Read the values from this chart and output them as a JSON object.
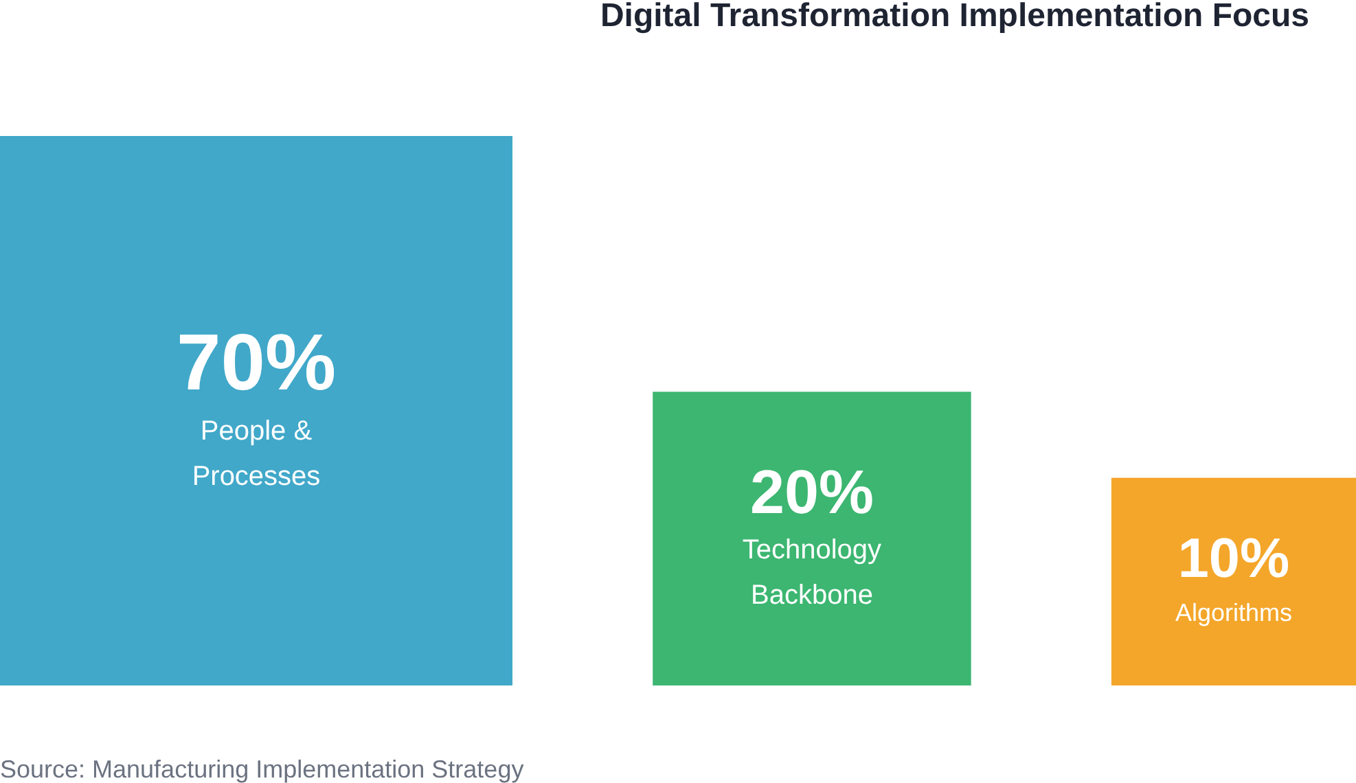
{
  "chart_data": {
    "type": "other",
    "title": "Digital Transformation Implementation Focus",
    "categories": [
      "People & Processes",
      "Technology Backbone",
      "Algorithms"
    ],
    "values": [
      70,
      20,
      10
    ],
    "colors": [
      "#41a8c9",
      "#3cb671",
      "#f4a62a"
    ],
    "value_labels": [
      "70%",
      "20%",
      "10%"
    ],
    "annotations": [
      "Source: Manufacturing Implementation Strategy"
    ]
  }
}
